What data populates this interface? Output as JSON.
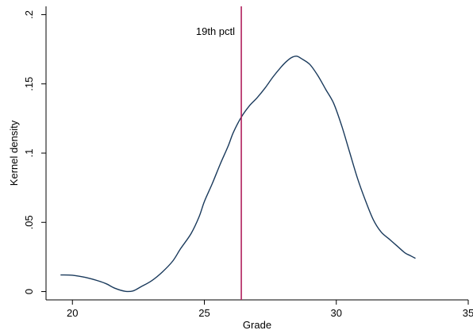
{
  "chart_data": {
    "type": "line",
    "title": "",
    "xlabel": "Grade",
    "ylabel": "Kernel density",
    "xlim": [
      19,
      35
    ],
    "ylim": [
      -0.006,
      0.206
    ],
    "xticks": [
      20,
      25,
      30,
      35
    ],
    "xtick_labels": [
      "20",
      "25",
      "30",
      "35"
    ],
    "yticks": [
      0,
      0.05,
      0.1,
      0.15,
      0.2
    ],
    "ytick_labels": [
      "0",
      ".05",
      ".1",
      ".15",
      ".2"
    ],
    "grid": false,
    "legend": "none",
    "series": [
      {
        "color": "#1a3a5c",
        "x": [
          19.55,
          20.0,
          20.5,
          21.0,
          21.3,
          21.6,
          22.0,
          22.3,
          22.6,
          23.0,
          23.4,
          23.8,
          24.1,
          24.5,
          24.8,
          25.0,
          25.3,
          25.6,
          25.9,
          26.1,
          26.4,
          26.7,
          27.0,
          27.3,
          27.6,
          27.9,
          28.1,
          28.3,
          28.5,
          28.7,
          29.0,
          29.3,
          29.6,
          29.9,
          30.2,
          30.5,
          30.8,
          31.1,
          31.4,
          31.7,
          32.0,
          32.3,
          32.6,
          32.8,
          33.0
        ],
        "values": [
          0.012,
          0.0118,
          0.0102,
          0.0076,
          0.0055,
          0.0025,
          0.0002,
          0.0005,
          0.0035,
          0.0078,
          0.014,
          0.022,
          0.031,
          0.042,
          0.054,
          0.065,
          0.078,
          0.092,
          0.105,
          0.115,
          0.126,
          0.134,
          0.14,
          0.147,
          0.155,
          0.162,
          0.166,
          0.169,
          0.17,
          0.168,
          0.164,
          0.156,
          0.146,
          0.136,
          0.12,
          0.101,
          0.082,
          0.066,
          0.052,
          0.043,
          0.038,
          0.033,
          0.028,
          0.026,
          0.024
        ]
      }
    ],
    "annotations": [
      {
        "type": "vline",
        "x": 26.4,
        "label": "19th pctl",
        "color": "#b01f5c"
      }
    ]
  }
}
